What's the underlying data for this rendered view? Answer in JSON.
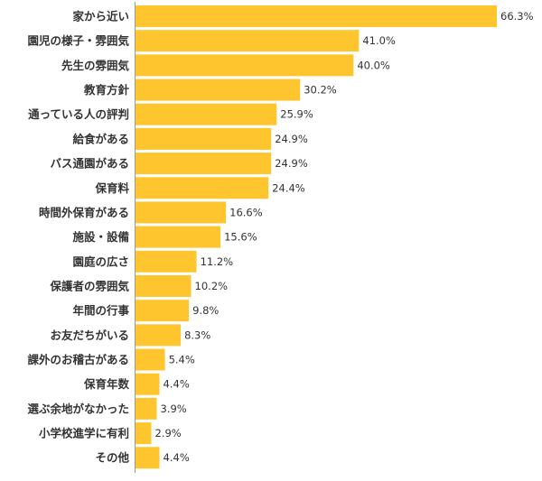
{
  "chart_data": {
    "type": "bar",
    "orientation": "horizontal",
    "title": "",
    "xlabel": "",
    "ylabel": "",
    "unit_suffix": "%",
    "xlim": [
      0,
      66.3
    ],
    "grid": false,
    "legend": "none",
    "bar_color": "#fec52e",
    "axis_color": "#999999",
    "categories": [
      "家から近い",
      "園児の様子・雰囲気",
      "先生の雰囲気",
      "教育方針",
      "通っている人の評判",
      "給食がある",
      "バス通園がある",
      "保育料",
      "時間外保育がある",
      "施設・設備",
      "園庭の広さ",
      "保護者の雰囲気",
      "年間の行事",
      "お友だちがいる",
      "課外のお稽古がある",
      "保育年数",
      "選ぶ余地がなかった",
      "小学校進学に有利",
      "その他"
    ],
    "values": [
      66.3,
      41.0,
      40.0,
      30.2,
      25.9,
      24.9,
      24.9,
      24.4,
      16.6,
      15.6,
      11.2,
      10.2,
      9.8,
      8.3,
      5.4,
      4.4,
      3.9,
      2.9,
      4.4
    ],
    "value_labels": [
      "66.3%",
      "41.0%",
      "40.0%",
      "30.2%",
      "25.9%",
      "24.9%",
      "24.9%",
      "24.4%",
      "16.6%",
      "15.6%",
      "11.2%",
      "10.2%",
      "9.8%",
      "8.3%",
      "5.4%",
      "4.4%",
      "3.9%",
      "2.9%",
      "4.4%"
    ]
  }
}
